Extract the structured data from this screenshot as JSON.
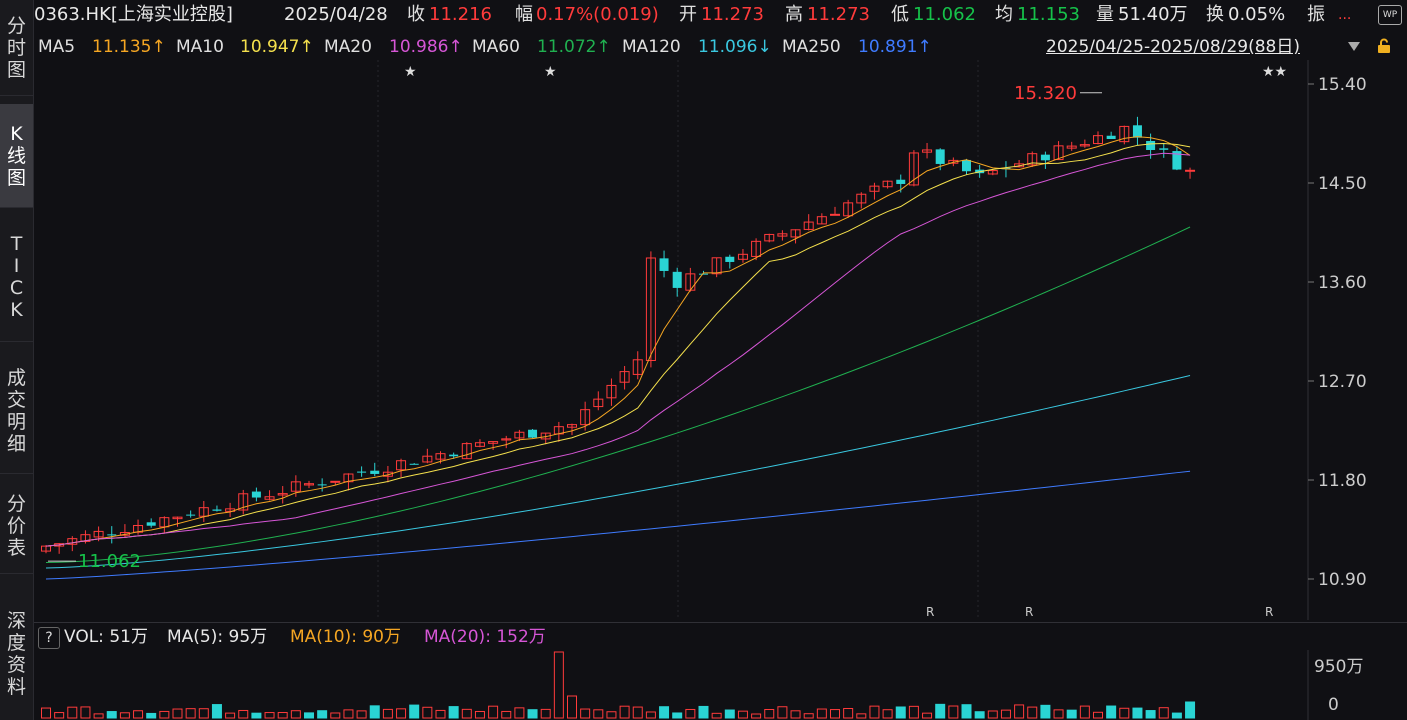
{
  "header": {
    "symbol": "0363.HK[上海实业控股]",
    "date": "2025/04/28",
    "close_label": "收",
    "close": "11.216",
    "change_label": "幅",
    "change": "0.17%(0.019)",
    "open_label": "开",
    "open": "11.273",
    "high_label": "高",
    "high": "11.273",
    "low_label": "低",
    "low": "11.062",
    "avg_label": "均",
    "avg": "11.153",
    "vol_label": "量",
    "volume": "51.40万",
    "turnover_label": "换",
    "turnover": "0.05%",
    "amp_label": "振",
    "more": "...",
    "wp_icon_label": "WP"
  },
  "ma_header": {
    "ma5_label": "MA5",
    "ma5": "11.135↑",
    "ma10_label": "MA10",
    "ma10": "10.947↑",
    "ma20_label": "MA20",
    "ma20": "10.986↑",
    "ma60_label": "MA60",
    "ma60": "11.072↑",
    "ma120_label": "MA120",
    "ma120": "11.096↓",
    "ma250_label": "MA250",
    "ma250": "10.891↑",
    "range": "2025/04/25-2025/08/29(88日)"
  },
  "sidebar": [
    {
      "label": "分时图",
      "active": false
    },
    {
      "label": "K线图",
      "active": true
    },
    {
      "label": "TICK",
      "active": false
    },
    {
      "label": "成交明细",
      "active": false
    },
    {
      "label": "分价表",
      "active": false
    },
    {
      "label": "深度资料",
      "active": false
    }
  ],
  "price_axis": [
    "15.40",
    "14.50",
    "13.60",
    "12.70",
    "11.80",
    "10.90"
  ],
  "annotations": {
    "high_mark": "15.320",
    "low_mark": "11.062",
    "r_marks": [
      "R",
      "R",
      "R"
    ],
    "stars": [
      "★",
      "★",
      "★★"
    ]
  },
  "vol_header": {
    "q": "?",
    "vol_label": "VOL: 51万",
    "ma5": "MA(5): 95万",
    "ma10": "MA(10): 90万",
    "ma20": "MA(20): 152万"
  },
  "vol_axis": [
    "950万",
    "0"
  ],
  "colors": {
    "up": "#ff3b3b",
    "down": "#2ad4d4",
    "bg": "#101014"
  }
}
